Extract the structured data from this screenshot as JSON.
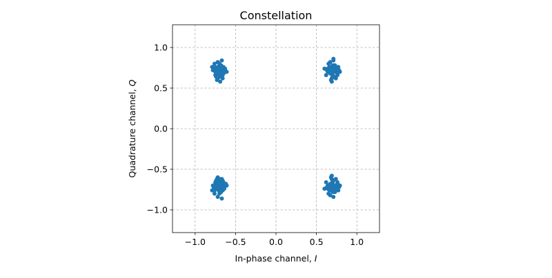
{
  "chart_data": {
    "type": "scatter",
    "title": "Constellation",
    "xlabel": "In-phase channel, I",
    "xlabel_parts": [
      "In-phase channel, ",
      "I"
    ],
    "ylabel": "Quadrature channel, Q",
    "ylabel_parts": [
      "Quadrature channel, ",
      "Q"
    ],
    "xlim": [
      -1.28,
      1.28
    ],
    "ylim": [
      -1.28,
      1.28
    ],
    "xticks": [
      -1.0,
      -0.5,
      0.0,
      0.5,
      1.0
    ],
    "xtick_labels": [
      "−1.0",
      "−0.5",
      "0.0",
      "0.5",
      "1.0"
    ],
    "yticks": [
      -1.0,
      -0.5,
      0.0,
      0.5,
      1.0
    ],
    "ytick_labels": [
      "−1.0",
      "−0.5",
      "0.0",
      "0.5",
      "1.0"
    ],
    "grid": true,
    "marker_color": "#1f77b4",
    "series": [
      {
        "x": [
          -0.77,
          -0.75,
          -0.72,
          -0.7,
          -0.68,
          -0.66,
          -0.64,
          -0.71,
          -0.69,
          -0.73,
          -0.67,
          -0.65,
          -0.74,
          -0.7,
          -0.68,
          -0.72,
          -0.76,
          -0.63,
          -0.69,
          -0.71,
          -0.66,
          -0.78,
          -0.62,
          -0.73,
          -0.68,
          -0.7,
          -0.74,
          -0.65,
          -0.72,
          -0.67,
          -0.69,
          -0.71,
          -0.75,
          -0.64,
          -0.7,
          -0.73,
          -0.66,
          -0.68,
          -0.72,
          -0.61,
          -0.79,
          -0.7,
          -0.74,
          -0.67,
          -0.71,
          -0.69,
          -0.63,
          -0.76,
          -0.65,
          -0.72,
          0.66,
          0.68,
          0.7,
          0.72,
          0.74,
          0.76,
          0.69,
          0.71,
          0.73,
          0.67,
          0.75,
          0.7,
          0.72,
          0.68,
          0.64,
          0.77,
          0.71,
          0.69,
          0.73,
          0.66,
          0.78,
          0.62,
          0.7,
          0.74,
          0.68,
          0.72,
          0.65,
          0.76,
          0.71,
          0.69,
          0.73,
          0.67,
          0.7,
          0.75,
          0.63,
          0.71,
          0.68,
          0.74,
          0.66,
          0.72,
          0.7,
          0.79,
          0.6,
          0.69,
          0.73,
          0.67,
          0.71,
          0.76,
          0.64,
          0.7,
          -0.77,
          -0.75,
          -0.72,
          -0.7,
          -0.68,
          -0.66,
          -0.64,
          -0.71,
          -0.69,
          -0.73,
          -0.67,
          -0.65,
          -0.74,
          -0.7,
          -0.68,
          -0.72,
          -0.76,
          -0.63,
          -0.69,
          -0.71,
          -0.66,
          -0.78,
          -0.62,
          -0.73,
          -0.68,
          -0.7,
          -0.74,
          -0.65,
          -0.72,
          -0.67,
          -0.69,
          -0.71,
          -0.75,
          -0.64,
          -0.7,
          -0.73,
          -0.66,
          -0.68,
          -0.72,
          -0.61,
          -0.79,
          -0.7,
          -0.74,
          -0.67,
          -0.71,
          -0.69,
          -0.63,
          -0.76,
          -0.65,
          -0.72,
          0.66,
          0.68,
          0.7,
          0.72,
          0.74,
          0.76,
          0.69,
          0.71,
          0.73,
          0.67,
          0.75,
          0.7,
          0.72,
          0.68,
          0.64,
          0.77,
          0.71,
          0.69,
          0.73,
          0.66,
          0.78,
          0.62,
          0.7,
          0.74,
          0.68,
          0.72,
          0.65,
          0.76,
          0.71,
          0.69,
          0.73,
          0.67,
          0.7,
          0.75,
          0.63,
          0.71,
          0.68,
          0.74,
          0.66,
          0.72,
          0.7,
          0.79,
          0.6,
          0.69,
          0.73,
          0.67,
          0.71,
          0.76,
          0.64,
          0.7
        ],
        "y": [
          0.74,
          0.7,
          0.76,
          0.72,
          0.68,
          0.74,
          0.7,
          0.66,
          0.78,
          0.72,
          0.64,
          0.76,
          0.68,
          0.8,
          0.7,
          0.62,
          0.76,
          0.72,
          0.74,
          0.68,
          0.66,
          0.72,
          0.7,
          0.6,
          0.78,
          0.74,
          0.64,
          0.7,
          0.82,
          0.72,
          0.68,
          0.76,
          0.66,
          0.74,
          0.7,
          0.72,
          0.62,
          0.78,
          0.68,
          0.7,
          0.76,
          0.64,
          0.72,
          0.84,
          0.7,
          0.58,
          0.74,
          0.8,
          0.68,
          0.72,
          0.74,
          0.7,
          0.66,
          0.78,
          0.72,
          0.68,
          0.62,
          0.76,
          0.7,
          0.82,
          0.74,
          0.64,
          0.72,
          0.6,
          0.7,
          0.76,
          0.86,
          0.68,
          0.74,
          0.7,
          0.72,
          0.66,
          0.78,
          0.62,
          0.74,
          0.7,
          0.8,
          0.68,
          0.72,
          0.58,
          0.76,
          0.7,
          0.66,
          0.74,
          0.72,
          0.84,
          0.68,
          0.64,
          0.76,
          0.7,
          0.72,
          0.7,
          0.74,
          0.62,
          0.78,
          0.68,
          0.72,
          0.66,
          0.74,
          0.7,
          -0.72,
          -0.68,
          -0.74,
          -0.7,
          -0.66,
          -0.76,
          -0.72,
          -0.64,
          -0.78,
          -0.7,
          -0.62,
          -0.74,
          -0.68,
          -0.8,
          -0.72,
          -0.6,
          -0.76,
          -0.7,
          -0.74,
          -0.66,
          -0.72,
          -0.7,
          -0.68,
          -0.62,
          -0.78,
          -0.74,
          -0.64,
          -0.7,
          -0.84,
          -0.72,
          -0.68,
          -0.76,
          -0.66,
          -0.74,
          -0.7,
          -0.72,
          -0.64,
          -0.78,
          -0.68,
          -0.7,
          -0.76,
          -0.62,
          -0.72,
          -0.86,
          -0.7,
          -0.74,
          -0.68,
          -0.8,
          -0.66,
          -0.72,
          -0.7,
          -0.74,
          -0.66,
          -0.78,
          -0.72,
          -0.68,
          -0.62,
          -0.76,
          -0.7,
          -0.82,
          -0.74,
          -0.64,
          -0.72,
          -0.6,
          -0.7,
          -0.76,
          -0.84,
          -0.68,
          -0.74,
          -0.7,
          -0.72,
          -0.66,
          -0.78,
          -0.62,
          -0.74,
          -0.7,
          -0.8,
          -0.68,
          -0.72,
          -0.58,
          -0.76,
          -0.7,
          -0.66,
          -0.74,
          -0.72,
          -0.64,
          -0.68,
          -0.7,
          -0.76,
          -0.7,
          -0.72,
          -0.7,
          -0.74,
          -0.62,
          -0.78,
          -0.68,
          -0.72,
          -0.66,
          -0.74,
          -0.7
        ]
      }
    ]
  }
}
